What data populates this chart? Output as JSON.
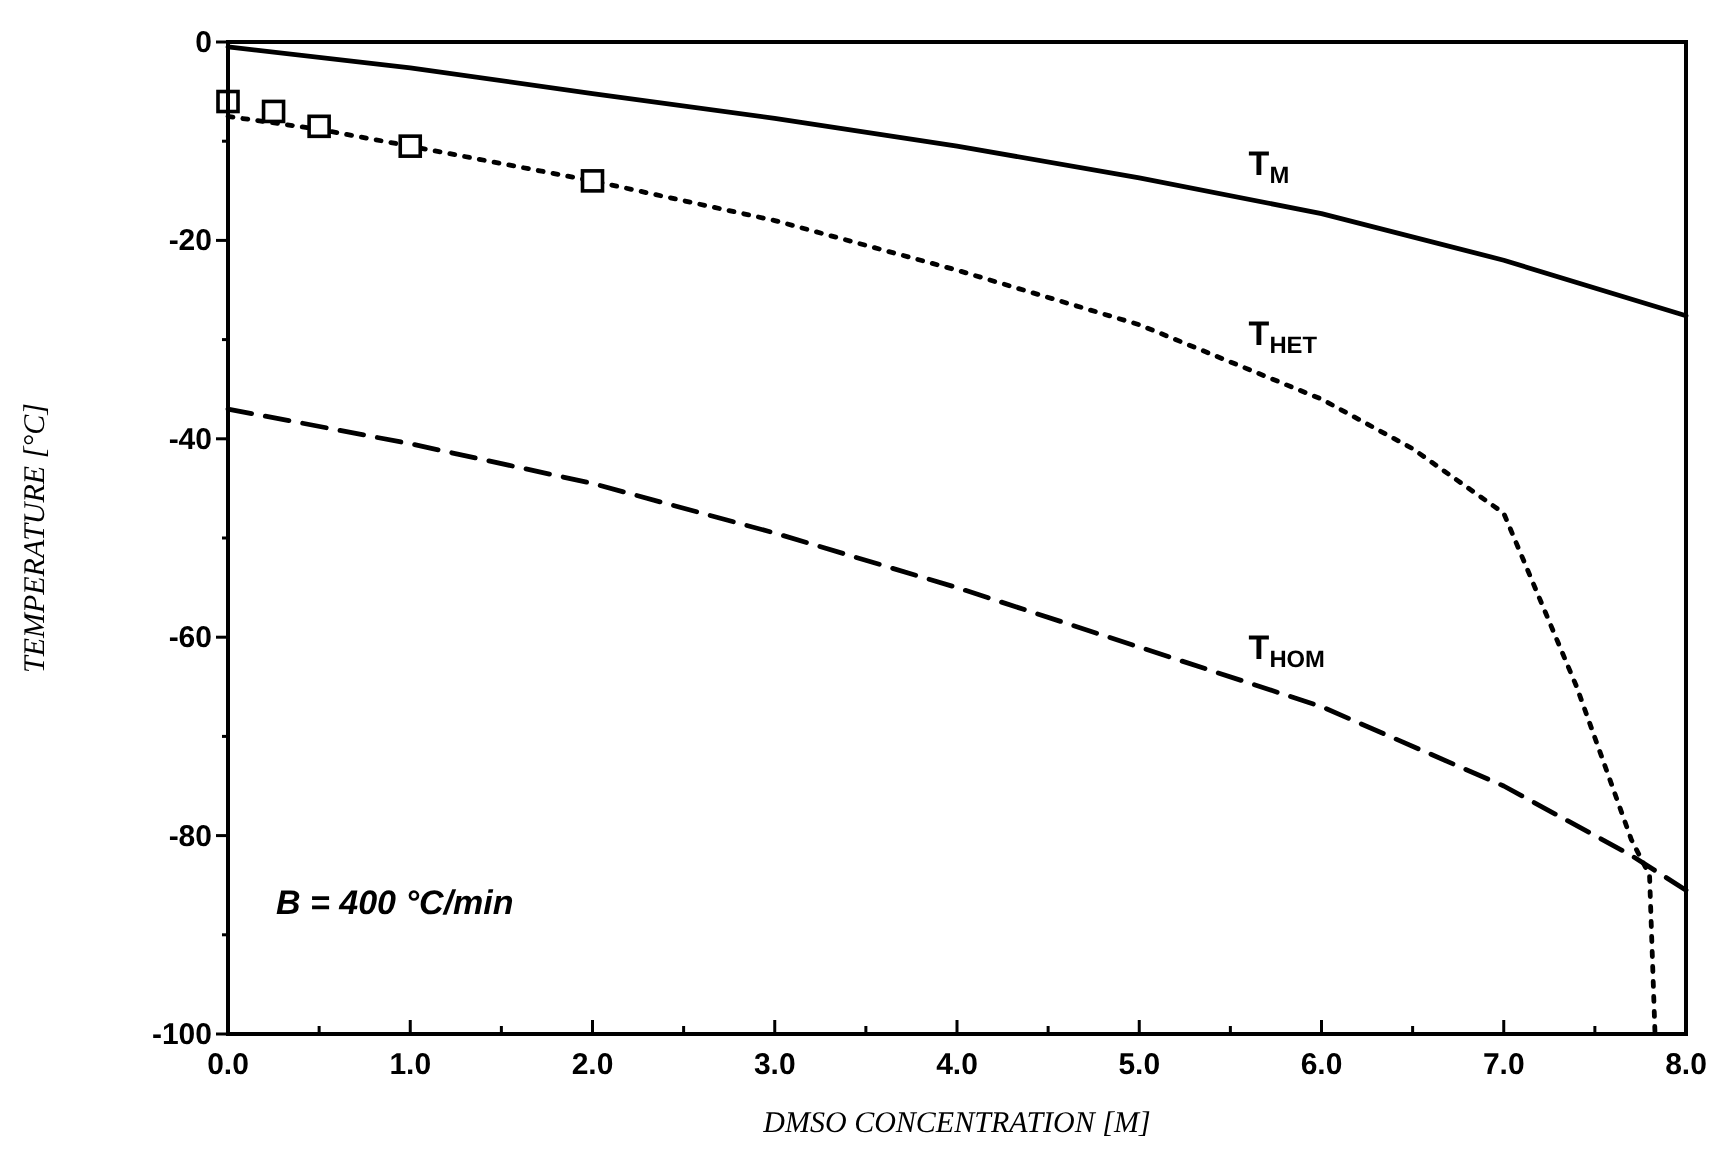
{
  "chart_data": {
    "type": "line",
    "xlabel": "DMSO CONCENTRATION  [M]",
    "ylabel": "TEMPERATURE  [°C]",
    "xlim": [
      0,
      8
    ],
    "ylim": [
      -100,
      0
    ],
    "xticks": [
      {
        "value": 0,
        "label": "0.0"
      },
      {
        "value": 0.5,
        "label": null
      },
      {
        "value": 1,
        "label": "1.0"
      },
      {
        "value": 1.5,
        "label": null
      },
      {
        "value": 2,
        "label": "2.0"
      },
      {
        "value": 2.5,
        "label": null
      },
      {
        "value": 3,
        "label": "3.0"
      },
      {
        "value": 3.5,
        "label": null
      },
      {
        "value": 4,
        "label": "4.0"
      },
      {
        "value": 4.5,
        "label": null
      },
      {
        "value": 5,
        "label": "5.0"
      },
      {
        "value": 5.5,
        "label": null
      },
      {
        "value": 6,
        "label": "6.0"
      },
      {
        "value": 6.5,
        "label": null
      },
      {
        "value": 7,
        "label": "7.0"
      },
      {
        "value": 7.5,
        "label": null
      },
      {
        "value": 8,
        "label": "8.0"
      }
    ],
    "yticks": [
      0,
      {
        "value": -10,
        "label": null
      },
      -20,
      {
        "value": -30,
        "label": null
      },
      -40,
      {
        "value": -50,
        "label": null
      },
      -60,
      {
        "value": -70,
        "label": null
      },
      -80,
      {
        "value": -90,
        "label": null
      },
      -100
    ],
    "series": [
      {
        "name": "T$_{M}$",
        "color": "#000000",
        "line_style": "solid",
        "x": [
          0,
          1,
          2,
          3,
          4,
          5,
          6,
          7,
          8
        ],
        "values": [
          -0.5,
          -2.6,
          -5.2,
          -7.7,
          -10.5,
          -13.7,
          -17.3,
          -22,
          -27.6
        ]
      },
      {
        "name": "T$_{HET}$",
        "color": "#000000",
        "line_style": "dotted",
        "x": [
          0,
          0.5,
          1,
          2,
          3,
          4,
          5,
          6,
          6.5,
          7,
          7.4,
          7.7,
          7.8,
          7.83
        ],
        "values": [
          -7.5,
          -8.8,
          -10.5,
          -14,
          -18,
          -23,
          -28.5,
          -36,
          -41,
          -47.5,
          -65,
          -80.4,
          -84,
          -100
        ]
      },
      {
        "name": "T$_{HOM}$",
        "color": "#000000",
        "line_style": "dashed",
        "x": [
          0,
          1,
          2,
          3,
          4,
          5,
          6,
          7,
          7.7,
          8
        ],
        "values": [
          -37,
          -40.5,
          -44.5,
          -49.5,
          -55,
          -61,
          -67,
          -75,
          -82,
          -85.5
        ]
      },
      {
        "type": "scatter",
        "color": "#000000",
        "marker": "square",
        "x": [
          0,
          0.25,
          0.5,
          1,
          2
        ],
        "values": [
          -6,
          -7,
          -8.5,
          -10.5,
          -14
        ]
      }
    ],
    "annotations": [
      "B = 400 °C/min"
    ],
    "grid": false
  }
}
